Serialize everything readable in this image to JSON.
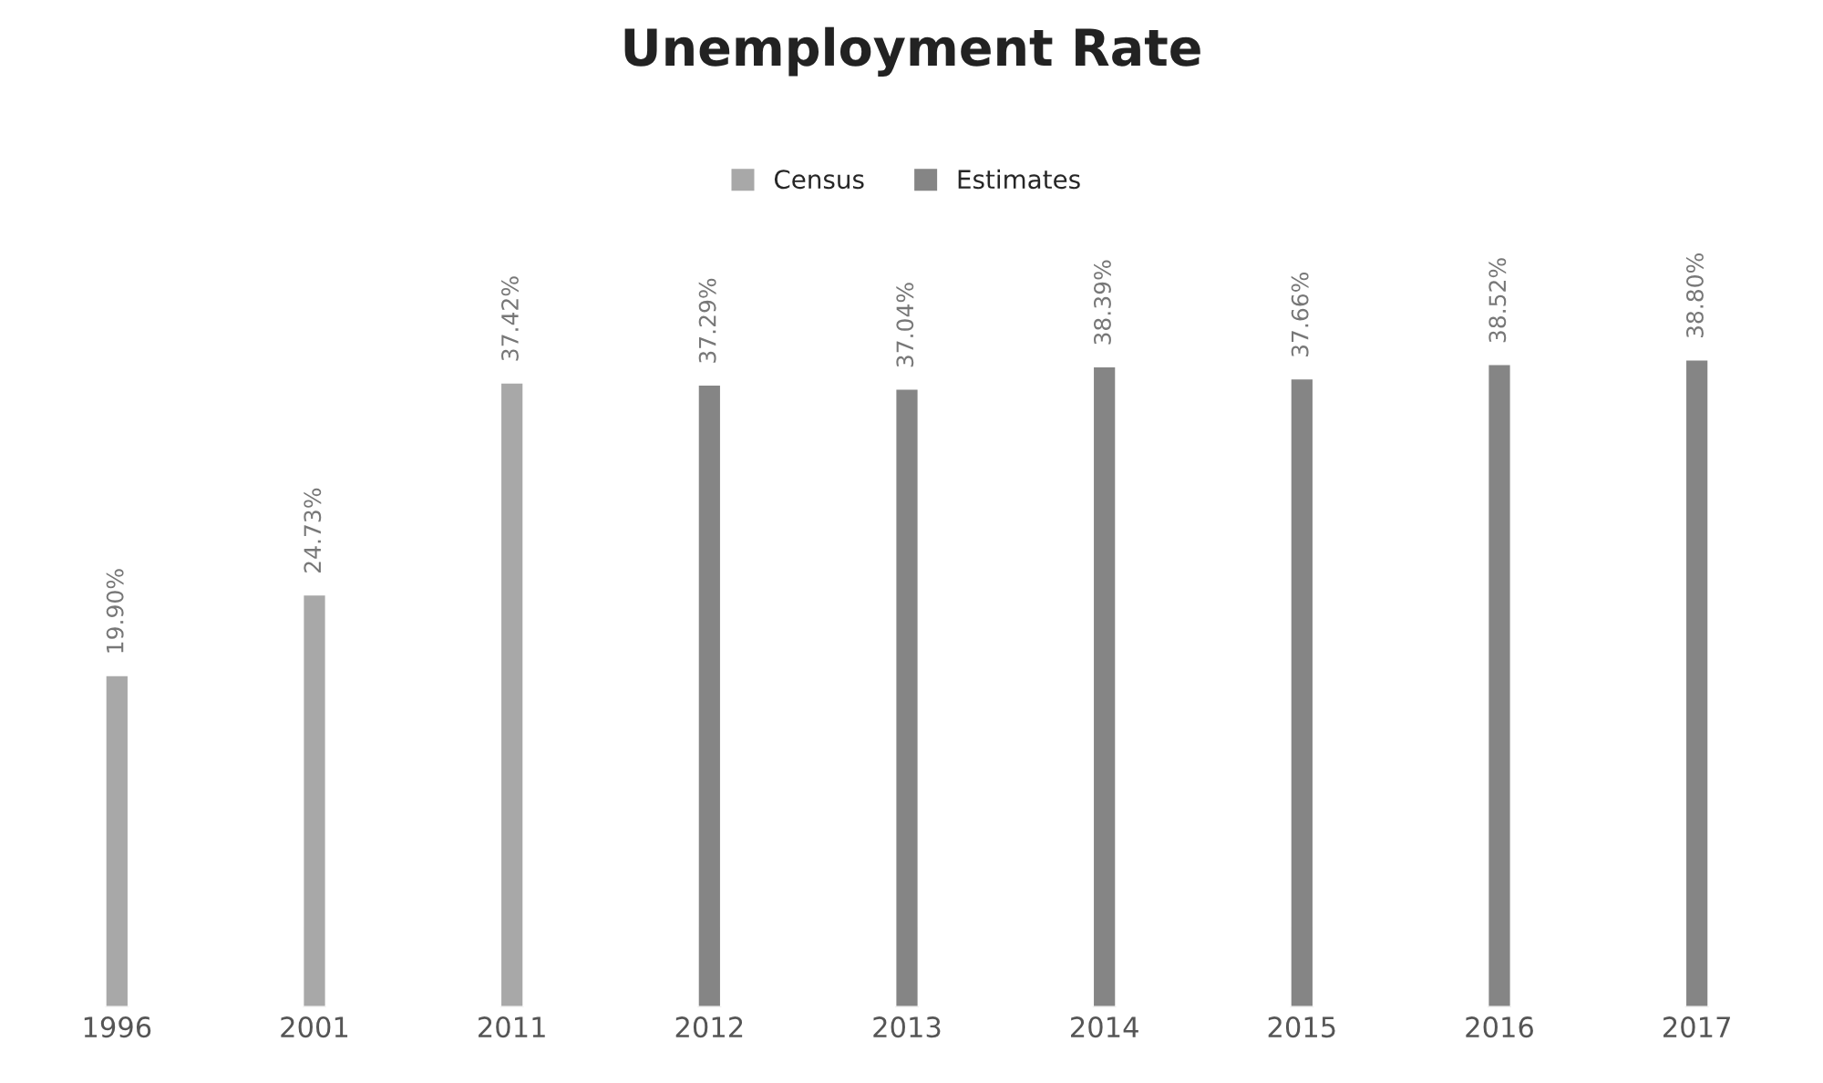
{
  "chart_data": {
    "type": "bar",
    "title": "Unemployment Rate",
    "categories": [
      "1996",
      "2001",
      "2011",
      "2012",
      "2013",
      "2014",
      "2015",
      "2016",
      "2017"
    ],
    "series": [
      {
        "name": "Census",
        "color": "#a8a8a8",
        "values": [
          19.9,
          24.73,
          37.42,
          null,
          null,
          null,
          null,
          null,
          null
        ],
        "value_labels": [
          "19.90%",
          "24.73%",
          "37.42%",
          null,
          null,
          null,
          null,
          null,
          null
        ]
      },
      {
        "name": "Estimates",
        "color": "#858585",
        "values": [
          null,
          null,
          null,
          37.29,
          37.04,
          38.39,
          37.66,
          38.52,
          38.8
        ],
        "value_labels": [
          null,
          null,
          null,
          "37.29%",
          "37.04%",
          "38.39%",
          "37.66%",
          "38.52%",
          "38.80%"
        ]
      }
    ],
    "stacked": true,
    "legend": "top",
    "grid": false
  }
}
